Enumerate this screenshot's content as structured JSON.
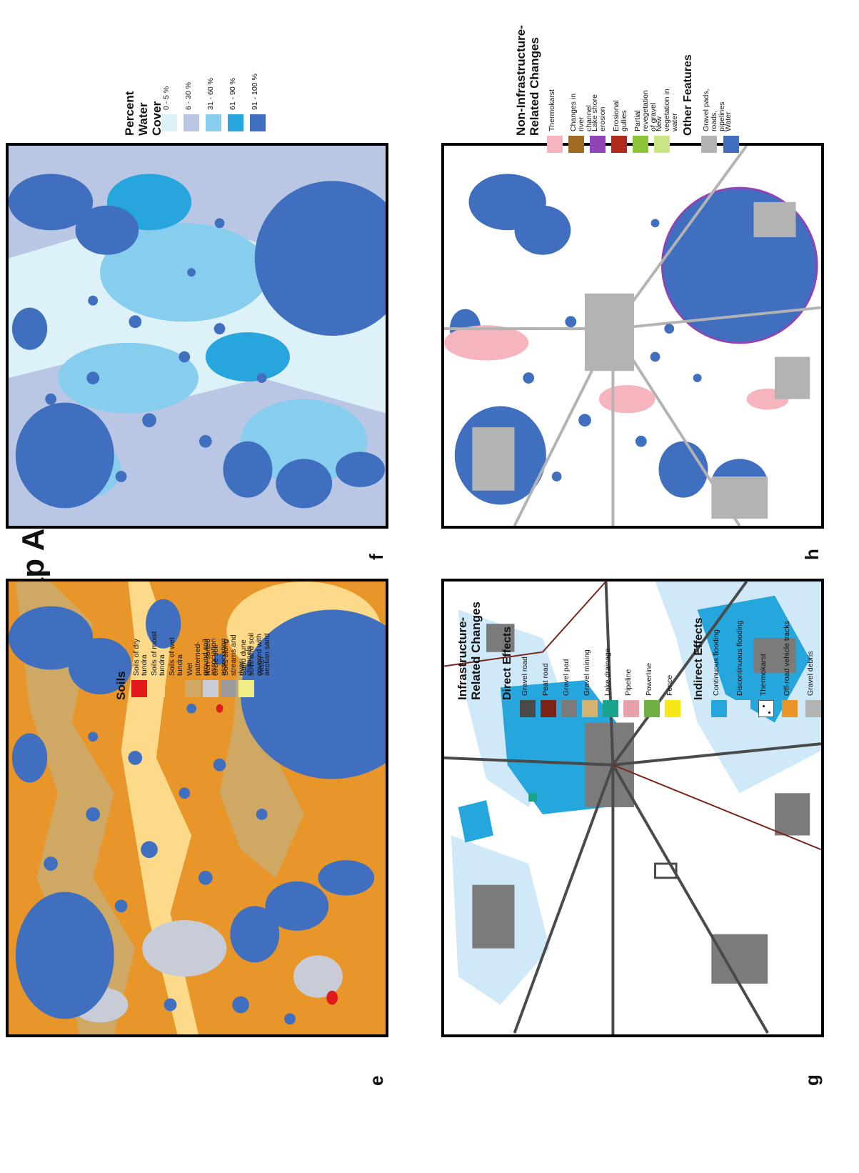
{
  "title": "Map A",
  "panels": {
    "e": "e",
    "f": "f",
    "g": "g",
    "h": "h"
  },
  "soils": {
    "title": "Soils",
    "items": [
      {
        "label": "Soils of dry tundra",
        "color": "#e31a1c"
      },
      {
        "label": "Soils of moist tundra",
        "color": "#fdd98a"
      },
      {
        "label": "Soils of wet tundra",
        "color": "#e8952a"
      },
      {
        "label": "Wet patterned-ground soil association",
        "color": "#cfa964"
      },
      {
        "label": "Non-sorted circle soil association",
        "color": "#c8ccd6"
      },
      {
        "label": "Soils along streams and river channels",
        "color": "#9b9b9b"
      },
      {
        "label": "Sand dune soils and soil covered with aeolian sand",
        "color": "#f2ee86"
      },
      {
        "label": "Water",
        "color": "#3f6fbe"
      }
    ]
  },
  "water_cover": {
    "title": "Percent Water Cover",
    "items": [
      {
        "label": "0 - 5 %",
        "color": "#dcf1f8"
      },
      {
        "label": "6 - 30 %",
        "color": "#b9c6e4"
      },
      {
        "label": "31 - 60 %",
        "color": "#86cdee"
      },
      {
        "label": "61 - 90 %",
        "color": "#27a5dd"
      },
      {
        "label": "91 - 100 %",
        "color": "#3f6fbe"
      }
    ]
  },
  "infrastructure": {
    "title": "Infrastructure-Related Changes",
    "direct_title": "Direct Effects",
    "direct": [
      {
        "label": "Gravel road",
        "color": "#4a4a4a"
      },
      {
        "label": "Peat road",
        "color": "#7a2418"
      },
      {
        "label": "Gravel pad",
        "color": "#7b7b7b"
      },
      {
        "label": "Gravel mining",
        "color": "#d6b370"
      },
      {
        "label": "Lake drainage",
        "color": "#1aa58b"
      },
      {
        "label": "Pipeline",
        "color": "#e8a0aa"
      },
      {
        "label": "Powerline",
        "color": "#6fb043"
      },
      {
        "label": "Fence",
        "color": "#f5e816"
      }
    ],
    "indirect_title": "Indirect Effects",
    "indirect": [
      {
        "label": "Continuous flooding",
        "color": "#25a6dd"
      },
      {
        "label": "Discontinuous flooding",
        "color": "#cfe9f8"
      },
      {
        "label": "Thermokarst",
        "color": "#ffffff"
      },
      {
        "label": "Off-road vehicle tracks",
        "color": "#e8952a"
      },
      {
        "label": "Gravel debris",
        "color": "#b3b3b3"
      }
    ]
  },
  "non_infrastructure": {
    "title": "Non-Infrastructure-Related Changes",
    "items": [
      {
        "label": "Thermokarst",
        "color": "#f6b4bf"
      },
      {
        "label": "Changes in river channel",
        "color": "#a06a22"
      },
      {
        "label": "Lake shore erosion",
        "color": "#8f45b5"
      },
      {
        "label": "Erosional gullies",
        "color": "#b02a1c"
      },
      {
        "label": "Partial revegetation of gravel",
        "color": "#8cc43a"
      },
      {
        "label": "New vegetation in water",
        "color": "#c9e586"
      }
    ],
    "other_title": "Other Features",
    "other": [
      {
        "label": "Gravel pads, roads, pipelines",
        "color": "#b3b3b3"
      },
      {
        "label": "Water",
        "color": "#3f6fbe"
      }
    ]
  }
}
